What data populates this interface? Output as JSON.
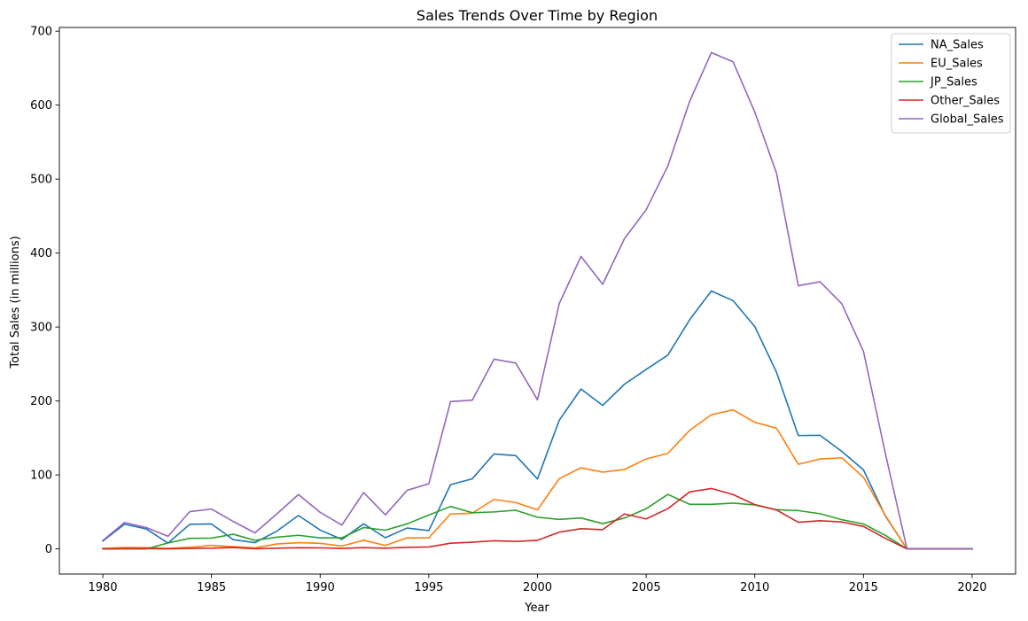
{
  "chart_data": {
    "type": "line",
    "title": "Sales Trends Over Time by Region",
    "xlabel": "Year",
    "ylabel": "Total Sales (in millions)",
    "xlim": [
      1978,
      2022
    ],
    "ylim": [
      -34,
      705
    ],
    "xticks": [
      1980,
      1985,
      1990,
      1995,
      2000,
      2005,
      2010,
      2015,
      2020
    ],
    "yticks": [
      0,
      100,
      200,
      300,
      400,
      500,
      600,
      700
    ],
    "grid": false,
    "legend_position": "top-right",
    "x": [
      1980,
      1981,
      1982,
      1983,
      1984,
      1985,
      1986,
      1987,
      1988,
      1989,
      1990,
      1991,
      1992,
      1993,
      1994,
      1995,
      1996,
      1997,
      1998,
      1999,
      2000,
      2001,
      2002,
      2003,
      2004,
      2005,
      2006,
      2007,
      2008,
      2009,
      2010,
      2011,
      2012,
      2013,
      2014,
      2015,
      2016,
      2017,
      2020
    ],
    "series": [
      {
        "name": "NA_Sales",
        "color": "#1f77b4",
        "values": [
          10.6,
          33.4,
          27.0,
          7.8,
          33.3,
          33.7,
          12.5,
          8.5,
          23.9,
          45.2,
          25.5,
          12.8,
          33.9,
          15.1,
          28.2,
          24.8,
          86.8,
          94.8,
          128.4,
          126.1,
          94.5,
          173.9,
          216.2,
          194.0,
          222.6,
          242.6,
          262.1,
          309.7,
          348.7,
          335.6,
          300.6,
          238.8,
          153.3,
          153.6,
          131.9,
          106.9,
          44.9,
          0.0,
          0.3
        ]
      },
      {
        "name": "EU_Sales",
        "color": "#ff7f0e",
        "values": [
          0.7,
          1.9,
          1.7,
          0.8,
          2.1,
          4.7,
          3.0,
          1.4,
          6.6,
          8.4,
          7.6,
          3.9,
          11.7,
          4.6,
          14.9,
          14.9,
          47.3,
          48.3,
          66.9,
          62.7,
          52.8,
          94.9,
          109.7,
          103.8,
          107.3,
          121.6,
          129.2,
          160.2,
          181.4,
          188.0,
          171.2,
          163.2,
          114.4,
          121.6,
          123.2,
          96.9,
          45.6,
          0.0,
          0.0
        ]
      },
      {
        "name": "JP_Sales",
        "color": "#2ca02c",
        "values": [
          0.0,
          0.0,
          0.0,
          8.1,
          14.3,
          14.6,
          19.8,
          11.6,
          15.8,
          18.4,
          14.9,
          15.0,
          28.9,
          25.3,
          33.9,
          45.8,
          57.4,
          48.9,
          50.0,
          52.3,
          42.8,
          39.9,
          41.8,
          34.2,
          41.7,
          54.3,
          73.7,
          60.3,
          60.3,
          61.9,
          59.5,
          53.0,
          51.8,
          47.6,
          39.5,
          33.7,
          18.5,
          0.0,
          0.0
        ]
      },
      {
        "name": "Other_Sales",
        "color": "#d62728",
        "values": [
          0.1,
          0.3,
          0.3,
          0.1,
          0.7,
          0.9,
          1.9,
          0.2,
          0.9,
          1.5,
          1.4,
          0.7,
          1.7,
          0.9,
          2.2,
          2.6,
          7.7,
          9.1,
          11.0,
          10.1,
          11.6,
          22.6,
          27.3,
          26.0,
          47.3,
          40.6,
          54.4,
          77.0,
          81.7,
          73.5,
          59.9,
          52.6,
          36.0,
          38.1,
          36.5,
          30.3,
          14.4,
          0.0,
          0.0
        ]
      },
      {
        "name": "Global_Sales",
        "color": "#9467bd",
        "values": [
          11.4,
          35.8,
          28.9,
          17.0,
          50.4,
          53.9,
          37.1,
          21.7,
          47.2,
          73.5,
          49.4,
          32.2,
          76.2,
          46.0,
          79.2,
          88.1,
          199.2,
          201.1,
          256.5,
          251.3,
          201.6,
          331.5,
          395.5,
          357.8,
          419.3,
          458.5,
          517.9,
          605.0,
          671.0,
          658.6,
          590.6,
          507.8,
          355.8,
          361.2,
          331.5,
          267.1,
          130.0,
          0.3,
          0.3
        ]
      }
    ]
  }
}
